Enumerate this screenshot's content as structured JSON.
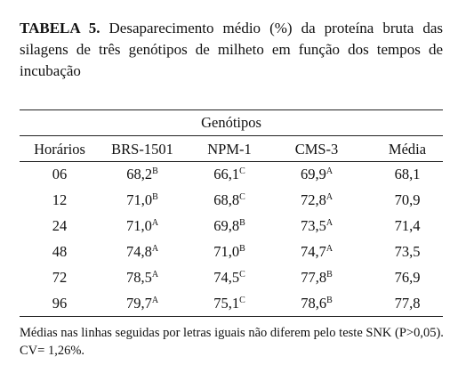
{
  "caption": {
    "label": "TABELA 5.",
    "text": "Desaparecimento médio (%) da proteína bruta das silagens de três genótipos de milheto em função dos tempos de incubação"
  },
  "table": {
    "group_header": "Genótipos",
    "columns": [
      "Horários",
      "BRS-1501",
      "NPM-1",
      "CMS-3",
      "Média"
    ],
    "rows": [
      [
        "06",
        {
          "value": "68,2",
          "sup": "B"
        },
        {
          "value": "66,1",
          "sup": "C"
        },
        {
          "value": "69,9",
          "sup": "A"
        },
        "68,1"
      ],
      [
        "12",
        {
          "value": "71,0",
          "sup": "B"
        },
        {
          "value": "68,8",
          "sup": "C"
        },
        {
          "value": "72,8",
          "sup": "A"
        },
        "70,9"
      ],
      [
        "24",
        {
          "value": "71,0",
          "sup": "A"
        },
        {
          "value": "69,8",
          "sup": "B"
        },
        {
          "value": "73,5",
          "sup": "A"
        },
        "71,4"
      ],
      [
        "48",
        {
          "value": "74,8",
          "sup": "A"
        },
        {
          "value": "71,0",
          "sup": "B"
        },
        {
          "value": "74,7",
          "sup": "A"
        },
        "73,5"
      ],
      [
        "72",
        {
          "value": "78,5",
          "sup": "A"
        },
        {
          "value": "74,5",
          "sup": "C"
        },
        {
          "value": "77,8",
          "sup": "B"
        },
        "76,9"
      ],
      [
        "96",
        {
          "value": "79,7",
          "sup": "A"
        },
        {
          "value": "75,1",
          "sup": "C"
        },
        {
          "value": "78,6",
          "sup": "B"
        },
        "77,8"
      ]
    ]
  },
  "footnote": "Médias nas linhas seguidas por letras iguais não diferem pelo teste SNK (P>0,05). CV= 1,26%."
}
